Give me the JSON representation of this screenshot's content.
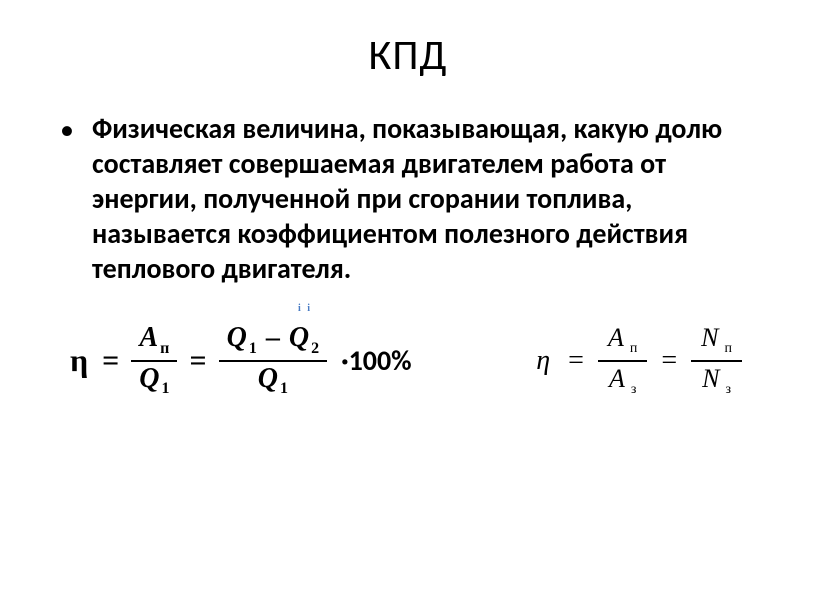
{
  "title": "КПД",
  "bullet_char": "•",
  "definition": "Физическая величина, показывающая, какую долю составляет совершаемая двигателем работа от энергии, полученной при сгорании топлива, называется коэффициентом полезного действия теплового двигателя.",
  "formula_left": {
    "eta": "η",
    "eq": "=",
    "frac1_num_var": "A",
    "frac1_num_sub": "п",
    "frac1_den_var": "Q",
    "frac1_den_sub": "1",
    "frac2_num_l_var": "Q",
    "frac2_num_l_sub": "1",
    "frac2_num_op": "–",
    "frac2_num_r_var": "Q",
    "frac2_num_r_sub": "2",
    "frac2_den_var": "Q",
    "frac2_den_sub": "1",
    "mult": "·100%"
  },
  "formula_right": {
    "eta": "η",
    "eq": "=",
    "frac1_num_var": "A",
    "frac1_num_sub": "п",
    "frac1_den_var": "A",
    "frac1_den_sub": "з",
    "frac2_num_var": "N",
    "frac2_num_sub": "п",
    "frac2_den_var": "N",
    "frac2_den_sub": "з"
  },
  "tiny_mark": "і і"
}
